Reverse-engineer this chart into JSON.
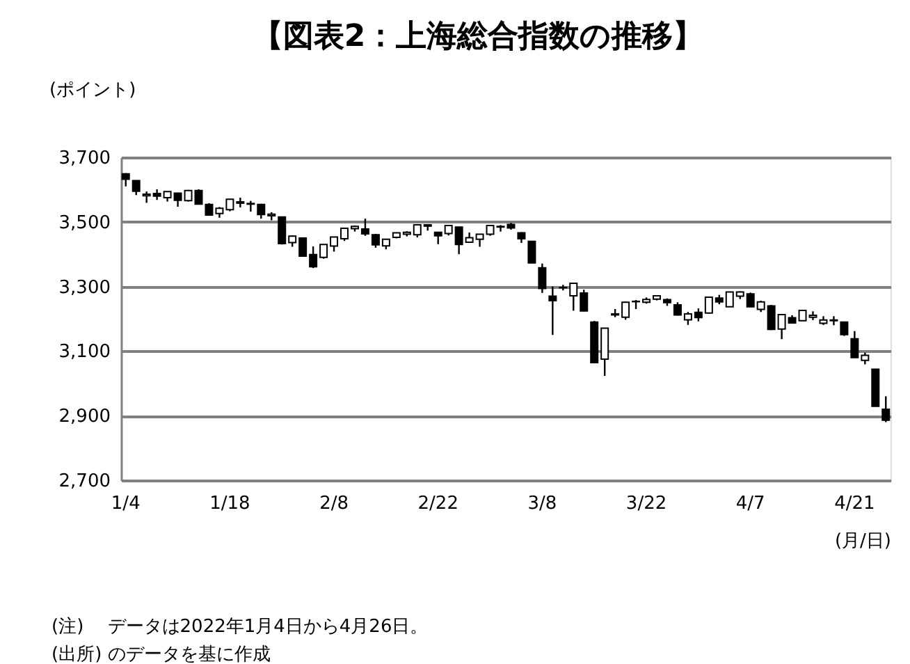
{
  "chart_data": {
    "type": "candlestick",
    "title": "【図表2：上海総合指数の推移】",
    "ylabel": "(ポイント)",
    "xlabel": "(月/日)",
    "categories": [
      "1/4",
      null,
      null,
      null,
      null,
      null,
      null,
      null,
      null,
      null,
      "1/18",
      null,
      null,
      null,
      null,
      null,
      null,
      null,
      null,
      null,
      "2/8",
      null,
      null,
      null,
      null,
      null,
      null,
      null,
      null,
      null,
      "2/22",
      null,
      null,
      null,
      null,
      null,
      null,
      null,
      null,
      null,
      "3/8",
      null,
      null,
      null,
      null,
      null,
      null,
      null,
      null,
      null,
      "3/22",
      null,
      null,
      null,
      null,
      null,
      null,
      null,
      null,
      null,
      "4/7",
      null,
      null,
      null,
      null,
      null,
      null,
      null,
      null,
      null,
      "4/21",
      null,
      null,
      null
    ],
    "ohlc": [
      [
        3649,
        3651,
        3610,
        3632
      ],
      [
        3628,
        3629,
        3583,
        3595
      ],
      [
        3581,
        3594,
        3559,
        3586
      ],
      [
        3588,
        3601,
        3568,
        3580
      ],
      [
        3575,
        3594,
        3563,
        3594
      ],
      [
        3589,
        3590,
        3547,
        3567
      ],
      [
        3566,
        3599,
        3563,
        3597
      ],
      [
        3597,
        3601,
        3555,
        3555
      ],
      [
        3554,
        3558,
        3521,
        3521
      ],
      [
        3526,
        3546,
        3513,
        3542
      ],
      [
        3538,
        3570,
        3533,
        3570
      ],
      [
        3562,
        3575,
        3545,
        3558
      ],
      [
        3557,
        3565,
        3532,
        3555
      ],
      [
        3554,
        3556,
        3510,
        3523
      ],
      [
        3519,
        3530,
        3505,
        3524
      ],
      [
        3515,
        3515,
        3430,
        3433
      ],
      [
        3436,
        3458,
        3423,
        3456
      ],
      [
        3450,
        3452,
        3392,
        3394
      ],
      [
        3399,
        3424,
        3357,
        3361
      ],
      [
        3390,
        3430,
        3386,
        3430
      ],
      [
        3425,
        3453,
        3408,
        3453
      ],
      [
        3448,
        3480,
        3441,
        3480
      ],
      [
        3479,
        3489,
        3470,
        3486
      ],
      [
        3478,
        3510,
        3457,
        3463
      ],
      [
        3460,
        3463,
        3420,
        3429
      ],
      [
        3426,
        3446,
        3415,
        3446
      ],
      [
        3452,
        3467,
        3449,
        3466
      ],
      [
        3462,
        3471,
        3455,
        3468
      ],
      [
        3460,
        3491,
        3452,
        3491
      ],
      [
        3487,
        3492,
        3473,
        3491
      ],
      [
        3468,
        3468,
        3431,
        3457
      ],
      [
        3464,
        3490,
        3458,
        3489
      ],
      [
        3484,
        3485,
        3400,
        3430
      ],
      [
        3437,
        3467,
        3435,
        3451
      ],
      [
        3446,
        3462,
        3423,
        3462
      ],
      [
        3462,
        3490,
        3457,
        3489
      ],
      [
        3486,
        3490,
        3470,
        3484
      ],
      [
        3492,
        3497,
        3476,
        3481
      ],
      [
        3466,
        3468,
        3435,
        3448
      ],
      [
        3440,
        3441,
        3372,
        3373
      ],
      [
        3358,
        3371,
        3280,
        3294
      ],
      [
        3270,
        3300,
        3150,
        3256
      ],
      [
        3297,
        3305,
        3288,
        3296
      ],
      [
        3271,
        3310,
        3225,
        3310
      ],
      [
        3280,
        3290,
        3223,
        3224
      ],
      [
        3190,
        3193,
        3063,
        3064
      ],
      [
        3075,
        3171,
        3023,
        3171
      ],
      [
        3212,
        3230,
        3205,
        3215
      ],
      [
        3205,
        3253,
        3197,
        3251
      ],
      [
        3253,
        3258,
        3230,
        3254
      ],
      [
        3251,
        3266,
        3247,
        3260
      ],
      [
        3261,
        3273,
        3257,
        3271
      ],
      [
        3259,
        3263,
        3240,
        3250
      ],
      [
        3243,
        3251,
        3210,
        3212
      ],
      [
        3197,
        3221,
        3181,
        3215
      ],
      [
        3220,
        3232,
        3192,
        3204
      ],
      [
        3218,
        3267,
        3216,
        3267
      ],
      [
        3264,
        3274,
        3245,
        3252
      ],
      [
        3237,
        3283,
        3237,
        3283
      ],
      [
        3270,
        3285,
        3261,
        3283
      ],
      [
        3277,
        3281,
        3236,
        3237
      ],
      [
        3229,
        3256,
        3221,
        3252
      ],
      [
        3240,
        3243,
        3165,
        3167
      ],
      [
        3168,
        3214,
        3137,
        3213
      ],
      [
        3203,
        3211,
        3186,
        3187
      ],
      [
        3194,
        3226,
        3193,
        3226
      ],
      [
        3205,
        3223,
        3196,
        3211
      ],
      [
        3186,
        3208,
        3181,
        3196
      ],
      [
        3196,
        3208,
        3180,
        3194
      ],
      [
        3190,
        3190,
        3147,
        3151
      ],
      [
        3138,
        3162,
        3079,
        3080
      ],
      [
        3071,
        3095,
        3059,
        3087
      ],
      [
        3044,
        3045,
        2928,
        2929
      ],
      [
        2920,
        2960,
        2880,
        2886
      ]
    ],
    "ylim": [
      2700,
      3700
    ],
    "yticks": [
      {
        "value": 2700,
        "label": "2,700"
      },
      {
        "value": 2900,
        "label": "2,900"
      },
      {
        "value": 3100,
        "label": "3,100"
      },
      {
        "value": 3300,
        "label": "3,300"
      },
      {
        "value": 3500,
        "label": "3,500"
      },
      {
        "value": 3700,
        "label": "3,700"
      }
    ],
    "grid": "y",
    "annotations": [
      "(注)　 データは2022年1月4日から4月26日。",
      "(出所) のデータを基に作成"
    ]
  }
}
